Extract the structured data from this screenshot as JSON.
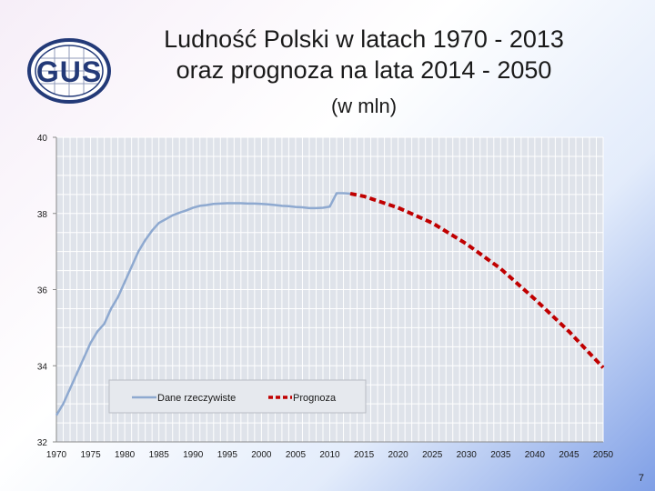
{
  "slide": {
    "title_line1": "Ludność Polski w latach 1970 - 2013",
    "title_line2": "oraz prognoza na lata 2014 - 2050",
    "subtitle": "(w mln)",
    "logo_text": "GUS",
    "page_number": "7"
  },
  "colors": {
    "actual": "#8ea9d0",
    "forecast": "#c00000",
    "plot_bg": "#dfe3ea",
    "grid": "#ffffff"
  },
  "chart_data": {
    "type": "line",
    "title": "",
    "xlabel": "",
    "ylabel": "",
    "xlim": [
      1970,
      2050
    ],
    "ylim": [
      32,
      40
    ],
    "y_ticks": [
      "32",
      "34",
      "36",
      "38",
      "40"
    ],
    "x_ticks": [
      "1970",
      "1975",
      "1980",
      "1985",
      "1990",
      "1995",
      "2000",
      "2005",
      "2010",
      "2015",
      "2020",
      "2025",
      "2030",
      "2035",
      "2040",
      "2045",
      "2050"
    ],
    "grid": true,
    "legend_placement": "bottom-left",
    "series": [
      {
        "name": "Dane rzeczywiste",
        "style": "solid",
        "x": [
          1970,
          1971,
          1972,
          1973,
          1974,
          1975,
          1976,
          1977,
          1978,
          1979,
          1980,
          1981,
          1982,
          1983,
          1984,
          1985,
          1986,
          1987,
          1988,
          1989,
          1990,
          1991,
          1992,
          1993,
          1994,
          1995,
          1996,
          1997,
          1998,
          1999,
          2000,
          2001,
          2002,
          2003,
          2004,
          2005,
          2006,
          2007,
          2008,
          2009,
          2010,
          2011,
          2012,
          2013
        ],
        "values": [
          32.7,
          33.0,
          33.4,
          33.8,
          34.2,
          34.6,
          34.9,
          35.1,
          35.5,
          35.8,
          36.2,
          36.6,
          37.0,
          37.3,
          37.55,
          37.75,
          37.85,
          37.95,
          38.02,
          38.08,
          38.15,
          38.2,
          38.22,
          38.25,
          38.26,
          38.27,
          38.27,
          38.27,
          38.26,
          38.26,
          38.25,
          38.24,
          38.22,
          38.2,
          38.19,
          38.17,
          38.16,
          38.14,
          38.14,
          38.15,
          38.18,
          38.53,
          38.53,
          38.52
        ]
      },
      {
        "name": "Prognoza",
        "style": "dashed",
        "x": [
          2013,
          2015,
          2020,
          2025,
          2030,
          2035,
          2040,
          2045,
          2050
        ],
        "values": [
          38.52,
          38.45,
          38.15,
          37.75,
          37.2,
          36.55,
          35.75,
          34.9,
          33.95
        ]
      }
    ]
  }
}
